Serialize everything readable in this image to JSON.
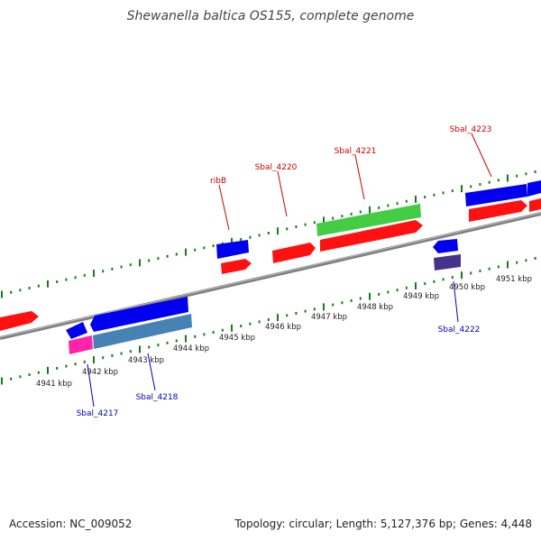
{
  "title": "Shewanella baltica OS155, complete genome",
  "footer": {
    "accession": "Accession: NC_009052",
    "summary": "Topology: circular; Length: 5,127,376 bp; Genes: 4,448"
  },
  "colors": {
    "cds": "#ff0000",
    "cds_blue": "#0000ee",
    "rna": "#44cc44",
    "steelblue": "#4682b4",
    "pink": "#ff22aa",
    "darkpurple": "#443388",
    "backbone": "#888888",
    "tick": "#1a7a1a",
    "label_red": "#cc0000",
    "label_blue": "#0000bb"
  },
  "kbp_labels": [
    "4941 kbp",
    "4942 kbp",
    "4943 kbp",
    "4944 kbp",
    "4945 kbp",
    "4946 kbp",
    "4947 kbp",
    "4948 kbp",
    "4949 kbp",
    "4950 kbp",
    "4951 kbp"
  ],
  "gene_labels": {
    "top": [
      "ribB",
      "Sbal_4220",
      "Sbal_4221",
      "Sbal_4223"
    ],
    "bottom": [
      "Sbal_4217",
      "Sbal_4218",
      "Sbal_4222"
    ]
  }
}
